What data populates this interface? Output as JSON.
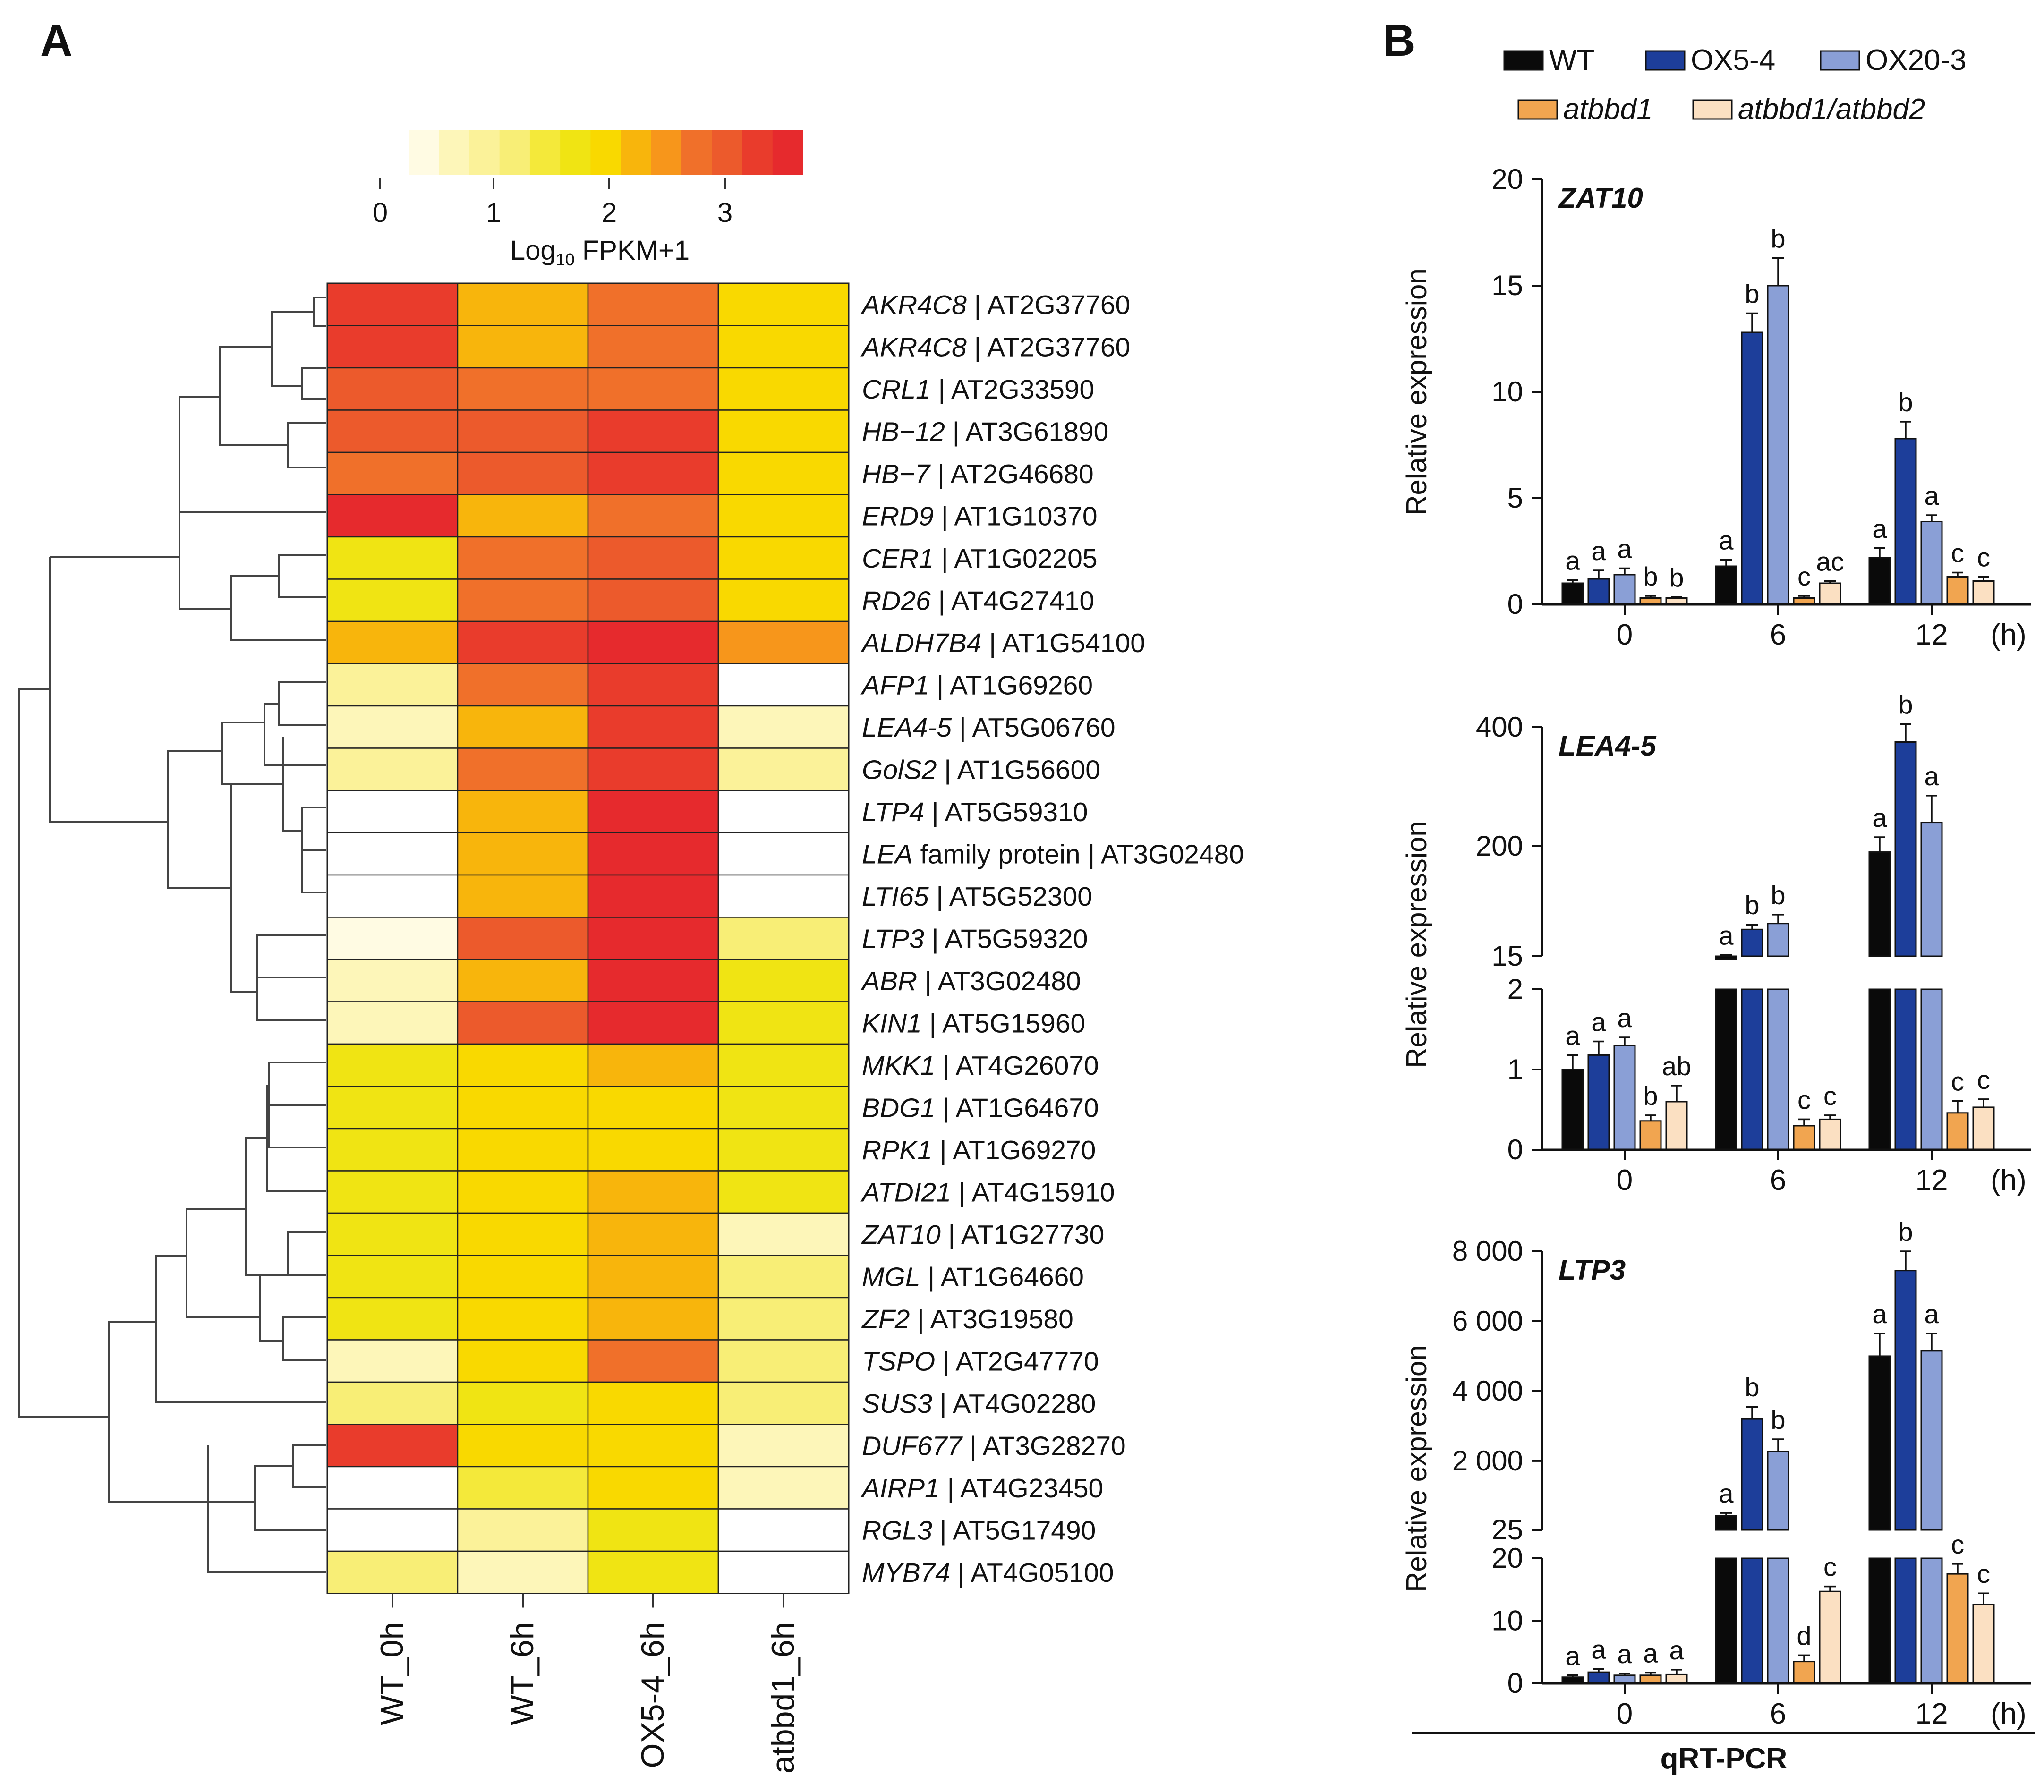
{
  "panels": {
    "a": "A",
    "b": "B"
  },
  "colors": {
    "scale": [
      "#fffbe3",
      "#fdf6b9",
      "#fbf299",
      "#f8ee76",
      "#f4e93a",
      "#f0e413",
      "#f9d900",
      "#f8b50c",
      "#f7961b",
      "#f0702a",
      "#ec5a2c",
      "#e93c2c",
      "#e62a2d"
    ],
    "wt": "#0a0a0a",
    "ox54": "#1d3e9a",
    "ox203": "#8a9fd6",
    "atbbd1": "#f1a550",
    "atbbd12": "#fbe0c2"
  },
  "heatmap": {
    "colorbar_ticks": [
      "0",
      "1",
      "2",
      "3"
    ],
    "colorbar_title_main": "Log",
    "colorbar_title_sub": "10",
    "colorbar_title_tail": " FPKM+1",
    "columns": [
      "WT_0h",
      "WT_6h",
      "OX5-4_6h",
      "atbbd1_6h"
    ],
    "rows": [
      {
        "gene": "AKR4C8",
        "id": " | AT2G37760",
        "values": [
          3.3,
          2.1,
          2.9,
          1.7
        ]
      },
      {
        "gene": "AKR4C8",
        "id": " | AT2G37760",
        "values": [
          3.3,
          2.1,
          2.9,
          1.7
        ]
      },
      {
        "gene": "CRL1",
        "id": " | AT2G33590",
        "values": [
          3.1,
          2.8,
          2.8,
          1.7
        ]
      },
      {
        "gene": "HB−12",
        "id": " | AT3G61890",
        "values": [
          3.1,
          3.1,
          3.5,
          1.7
        ]
      },
      {
        "gene": "HB−7",
        "id": " | AT2G46680",
        "values": [
          2.9,
          3.1,
          3.5,
          1.8
        ]
      },
      {
        "gene": "ERD9",
        "id": " | AT1G10370",
        "values": [
          3.7,
          2.1,
          2.8,
          1.8
        ]
      },
      {
        "gene": "CER1",
        "id": " | AT1G02205",
        "values": [
          1.6,
          2.8,
          3.2,
          1.8
        ]
      },
      {
        "gene": "RD26",
        "id": " | AT4G27410",
        "values": [
          1.6,
          2.8,
          3.2,
          1.8
        ]
      },
      {
        "gene": "ALDH7B4",
        "id": " | AT1G54100",
        "values": [
          2.3,
          3.3,
          3.6,
          2.6
        ]
      },
      {
        "gene": "AFP1",
        "id": " | AT1G69260",
        "values": [
          0.6,
          2.8,
          3.3,
          null
        ]
      },
      {
        "gene": "LEA4-5",
        "id": " | AT5G06760",
        "values": [
          0.4,
          2.1,
          3.3,
          0.2
        ]
      },
      {
        "gene": "GolS2",
        "id": " | AT1G56600",
        "values": [
          0.6,
          2.8,
          3.3,
          0.5
        ]
      },
      {
        "gene": "LTP4",
        "id": " | AT5G59310",
        "values": [
          null,
          2.2,
          3.7,
          null
        ]
      },
      {
        "gene": "LEA",
        "id": " family protein | AT3G02480",
        "values": [
          null,
          2.2,
          3.7,
          null
        ]
      },
      {
        "gene": "LTI65",
        "id": " | AT5G52300",
        "values": [
          null,
          2.2,
          3.7,
          null
        ]
      },
      {
        "gene": "LTP3",
        "id": " | AT5G59320",
        "values": [
          0.1,
          3.2,
          3.8,
          1.0
        ]
      },
      {
        "gene": "ABR",
        "id": " | AT3G02480",
        "values": [
          0.2,
          2.3,
          3.7,
          1.6
        ]
      },
      {
        "gene": "KIN1",
        "id": " | AT5G15960",
        "values": [
          0.3,
          3.2,
          3.7,
          1.6
        ]
      },
      {
        "gene": "MKK1",
        "id": " | AT4G26070",
        "values": [
          1.6,
          2.0,
          2.1,
          1.6
        ]
      },
      {
        "gene": "BDG1",
        "id": " | AT1G64670",
        "values": [
          1.6,
          1.7,
          1.7,
          1.6
        ]
      },
      {
        "gene": "RPK1",
        "id": " | AT1G69270",
        "values": [
          1.6,
          1.7,
          1.8,
          1.6
        ]
      },
      {
        "gene": "ATDI21",
        "id": " | AT4G15910",
        "values": [
          1.6,
          1.7,
          2.1,
          1.6
        ]
      },
      {
        "gene": "ZAT10",
        "id": " | AT1G27730",
        "values": [
          1.6,
          1.7,
          2.3,
          0.3
        ]
      },
      {
        "gene": "MGL",
        "id": " | AT1G64660",
        "values": [
          1.6,
          1.7,
          2.1,
          0.9
        ]
      },
      {
        "gene": "ZF2",
        "id": " | AT3G19580",
        "values": [
          1.6,
          1.7,
          2.1,
          0.9
        ]
      },
      {
        "gene": "TSPO",
        "id": " | AT2G47770",
        "values": [
          0.3,
          1.7,
          2.8,
          0.9
        ]
      },
      {
        "gene": "SUS3",
        "id": " | AT4G02280",
        "values": [
          1.0,
          1.4,
          1.7,
          0.9
        ]
      },
      {
        "gene": "DUF677",
        "id": " | AT3G28270",
        "values": [
          3.4,
          1.7,
          1.7,
          0.3
        ]
      },
      {
        "gene": "AIRP1",
        "id": " | AT4G23450",
        "values": [
          null,
          1.3,
          1.7,
          0.4
        ]
      },
      {
        "gene": "RGL3",
        "id": " | AT5G17490",
        "values": [
          null,
          0.5,
          1.4,
          null
        ]
      },
      {
        "gene": "MYB74",
        "id": " | AT4G05100",
        "values": [
          0.9,
          0.2,
          1.5,
          null
        ]
      }
    ]
  },
  "legend": [
    "WT",
    "OX5-4",
    "OX20-3",
    "atbbd1",
    "atbbd1/atbbd2"
  ],
  "time_unit": "(h)",
  "ylabel": "Relative expression",
  "section_label": "qRT-PCR",
  "chart_data": [
    {
      "type": "bar",
      "title": "ZAT10",
      "categories": [
        "0",
        "6",
        "12"
      ],
      "xlabel": "(h)",
      "ylabel": "Relative expression",
      "ylim": [
        0,
        20
      ],
      "y_ticks": [
        "0",
        "5",
        "10",
        "15",
        "20"
      ],
      "series": [
        {
          "name": "WT",
          "values": [
            1.0,
            1.8,
            2.2
          ],
          "errors": [
            0.15,
            0.3,
            0.45
          ],
          "letters": [
            "a",
            "a",
            "a"
          ]
        },
        {
          "name": "OX5-4",
          "values": [
            1.2,
            12.8,
            7.8
          ],
          "errors": [
            0.4,
            0.9,
            0.8
          ],
          "letters": [
            "a",
            "b",
            "b"
          ]
        },
        {
          "name": "OX20-3",
          "values": [
            1.4,
            15.0,
            3.9
          ],
          "errors": [
            0.3,
            1.3,
            0.3
          ],
          "letters": [
            "a",
            "b",
            "a"
          ]
        },
        {
          "name": "atbbd1",
          "values": [
            0.3,
            0.3,
            1.3
          ],
          "errors": [
            0.1,
            0.1,
            0.2
          ],
          "letters": [
            "b",
            "c",
            "c"
          ]
        },
        {
          "name": "atbbd1/atbbd2",
          "values": [
            0.3,
            1.0,
            1.1
          ],
          "errors": [
            0.05,
            0.1,
            0.2
          ],
          "letters": [
            "b",
            "ac",
            "c"
          ]
        }
      ]
    },
    {
      "type": "bar",
      "title": "LEA4-5",
      "categories": [
        "0",
        "6",
        "12"
      ],
      "xlabel": "(h)",
      "ylabel": "Relative expression",
      "broken_axis": {
        "lower_range": [
          0,
          2
        ],
        "upper_range": [
          15,
          400
        ]
      },
      "y_ticks_lower": [
        "0",
        "1",
        "2"
      ],
      "y_ticks_upper": [
        "15",
        "200",
        "400"
      ],
      "series": [
        {
          "name": "WT",
          "values": [
            1.0,
            15,
            190
          ],
          "errors": [
            0.18,
            2,
            25
          ],
          "letters": [
            "a",
            "a",
            "a"
          ]
        },
        {
          "name": "OX5-4",
          "values": [
            1.18,
            60,
            375
          ],
          "errors": [
            0.17,
            8,
            30
          ],
          "letters": [
            "a",
            "b",
            "b"
          ]
        },
        {
          "name": "OX20-3",
          "values": [
            1.3,
            70,
            240
          ],
          "errors": [
            0.1,
            15,
            45
          ],
          "letters": [
            "a",
            "b",
            "a"
          ]
        },
        {
          "name": "atbbd1",
          "values": [
            0.36,
            0.3,
            0.46
          ],
          "errors": [
            0.07,
            0.08,
            0.15
          ],
          "letters": [
            "b",
            "c",
            "c"
          ]
        },
        {
          "name": "atbbd1/atbbd2",
          "values": [
            0.6,
            0.38,
            0.53
          ],
          "errors": [
            0.2,
            0.05,
            0.1
          ],
          "letters": [
            "ab",
            "c",
            "c"
          ]
        }
      ]
    },
    {
      "type": "bar",
      "title": "LTP3",
      "categories": [
        "0",
        "6",
        "12"
      ],
      "xlabel": "(h)",
      "ylabel": "Relative expression",
      "broken_axis": {
        "lower_range": [
          0,
          20
        ],
        "upper_range": [
          25,
          8000
        ]
      },
      "y_ticks_lower": [
        "0",
        "10",
        "20"
      ],
      "y_ticks_upper": [
        "25",
        "2 000",
        "4 000",
        "6 000",
        "8 000"
      ],
      "series": [
        {
          "name": "WT",
          "values": [
            1.0,
            430,
            5000
          ],
          "errors": [
            0.3,
            80,
            650
          ],
          "letters": [
            "a",
            "a",
            "a"
          ]
        },
        {
          "name": "OX5-4",
          "values": [
            1.8,
            3200,
            7450
          ],
          "errors": [
            0.5,
            350,
            550
          ],
          "letters": [
            "a",
            "b",
            "b"
          ]
        },
        {
          "name": "OX20-3",
          "values": [
            1.3,
            2270,
            5150
          ],
          "errors": [
            0.3,
            350,
            500
          ],
          "letters": [
            "a",
            "b",
            "a"
          ]
        },
        {
          "name": "atbbd1",
          "values": [
            1.3,
            3.5,
            17.5
          ],
          "errors": [
            0.4,
            1.0,
            1.6
          ],
          "letters": [
            "a",
            "d",
            "c"
          ]
        },
        {
          "name": "atbbd1/atbbd2",
          "values": [
            1.4,
            14.7,
            12.6
          ],
          "errors": [
            0.8,
            0.8,
            1.8
          ],
          "letters": [
            "a",
            "c",
            "c"
          ]
        }
      ]
    }
  ]
}
